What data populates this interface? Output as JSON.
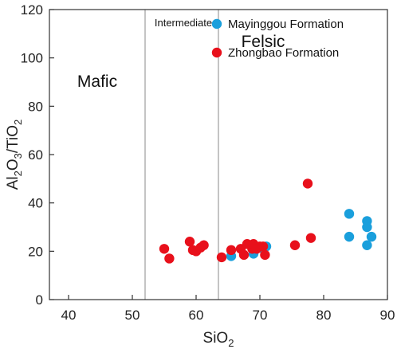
{
  "chart_data": {
    "type": "scatter",
    "xlabel": "SiO",
    "xlabel_sub": "2",
    "ylabel_parts": [
      {
        "t": "Al",
        "sub": false
      },
      {
        "t": "2",
        "sub": true
      },
      {
        "t": "O",
        "sub": false
      },
      {
        "t": "3",
        "sub": true
      },
      {
        "t": "/TiO",
        "sub": false
      },
      {
        "t": "2",
        "sub": true
      }
    ],
    "xlim": [
      37,
      90
    ],
    "ylim": [
      0,
      120
    ],
    "x_ticks": [
      40,
      50,
      60,
      70,
      80,
      90
    ],
    "y_ticks": [
      0,
      20,
      40,
      60,
      80,
      100,
      120
    ],
    "boundaries_x": [
      52,
      63.5
    ],
    "regions": [
      {
        "label": "Mafic",
        "x": 44.5,
        "y": 88,
        "size": "big"
      },
      {
        "label": "Intermediate",
        "x": 58,
        "y": 113,
        "size": "small"
      },
      {
        "label": "Felsic",
        "x": 70.5,
        "y": 104.5,
        "size": "big"
      }
    ],
    "legend_position": "top-right",
    "series": [
      {
        "name": "Mayinggou Formation",
        "color": "#1a9fdc",
        "points": [
          [
            65.5,
            18.0
          ],
          [
            69.0,
            19.0
          ],
          [
            70.5,
            21.0
          ],
          [
            71.0,
            22.0
          ],
          [
            84.0,
            35.5
          ],
          [
            84.0,
            26.0
          ],
          [
            86.8,
            32.5
          ],
          [
            86.8,
            30.0
          ],
          [
            86.8,
            22.5
          ],
          [
            87.5,
            26.0
          ]
        ]
      },
      {
        "name": "Zhongbao Formation",
        "color": "#e8101b",
        "points": [
          [
            55.0,
            21.0
          ],
          [
            55.8,
            17.0
          ],
          [
            59.0,
            24.0
          ],
          [
            59.5,
            20.5
          ],
          [
            60.0,
            20.0
          ],
          [
            60.7,
            21.5
          ],
          [
            61.2,
            22.5
          ],
          [
            64.0,
            17.5
          ],
          [
            65.5,
            20.5
          ],
          [
            67.0,
            21.0
          ],
          [
            67.5,
            18.5
          ],
          [
            68.0,
            23.0
          ],
          [
            68.8,
            21.0
          ],
          [
            69.0,
            23.0
          ],
          [
            69.5,
            21.0
          ],
          [
            70.0,
            22.0
          ],
          [
            70.5,
            22.0
          ],
          [
            70.8,
            18.5
          ],
          [
            75.5,
            22.5
          ],
          [
            77.5,
            48.0
          ],
          [
            78.0,
            25.5
          ]
        ]
      }
    ]
  }
}
